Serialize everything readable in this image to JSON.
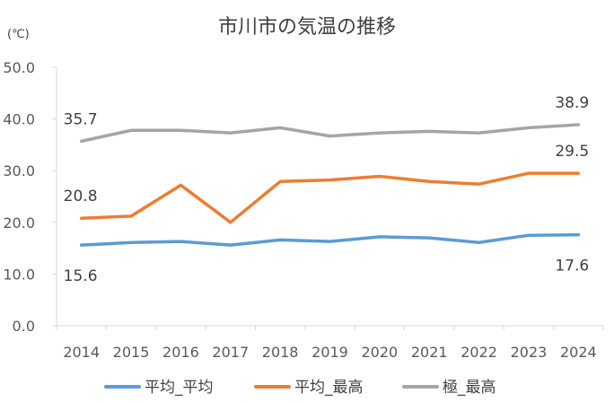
{
  "chart_data": {
    "type": "line",
    "title": "市川市の気温の推移",
    "ylabel": "(℃)",
    "xlabel": "",
    "categories": [
      "2014",
      "2015",
      "2016",
      "2017",
      "2018",
      "2019",
      "2020",
      "2021",
      "2022",
      "2023",
      "2024"
    ],
    "ylim": [
      0,
      50
    ],
    "yticks": [
      "0.0",
      "10.0",
      "20.0",
      "30.0",
      "40.0",
      "50.0"
    ],
    "grid": false,
    "legend_position": "bottom",
    "series": [
      {
        "name": "平均_平均",
        "color": "#5B9BD5",
        "values": [
          15.6,
          16.1,
          16.3,
          15.6,
          16.6,
          16.3,
          17.2,
          17.0,
          16.1,
          17.5,
          17.6
        ],
        "data_labels": [
          {
            "index": 0,
            "text": "15.6"
          },
          {
            "index": 10,
            "text": "17.6"
          }
        ]
      },
      {
        "name": "平均_最高",
        "color": "#ED7D31",
        "values": [
          20.8,
          21.2,
          27.2,
          20.0,
          27.9,
          28.2,
          28.9,
          27.9,
          27.4,
          29.5,
          29.5
        ],
        "data_labels": [
          {
            "index": 0,
            "text": "20.8"
          },
          {
            "index": 10,
            "text": "29.5"
          }
        ]
      },
      {
        "name": "極_最高",
        "color": "#A5A5A5",
        "values": [
          35.7,
          37.8,
          37.8,
          37.3,
          38.3,
          36.7,
          37.3,
          37.6,
          37.3,
          38.3,
          38.9
        ],
        "data_labels": [
          {
            "index": 0,
            "text": "35.7"
          },
          {
            "index": 10,
            "text": "38.9"
          }
        ]
      }
    ]
  }
}
